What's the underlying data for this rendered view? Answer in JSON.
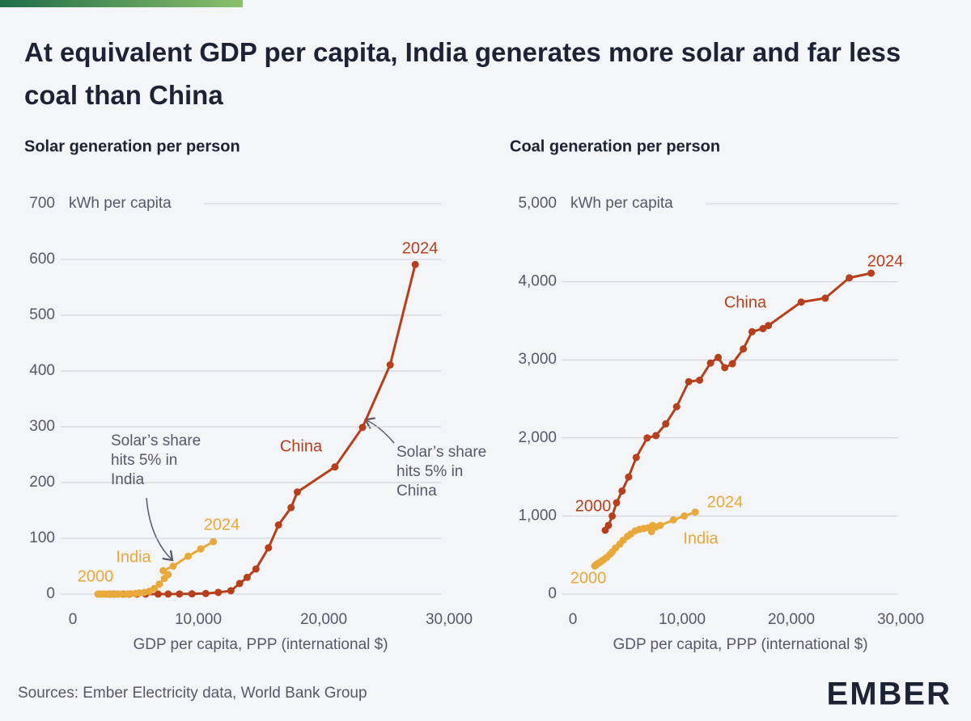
{
  "header": {
    "title": "At equivalent GDP per capita, India generates more solar and far less coal than China"
  },
  "footer": {
    "source": "Sources: Ember Electricity data, World Bank Group",
    "logo": "EMBER"
  },
  "chart_data": [
    {
      "type": "line",
      "title": "Solar generation per person",
      "ylabel": "kWh per capita",
      "xlabel": "GDP per capita, PPP (international $)",
      "xlim": [
        0,
        30000
      ],
      "xticks": [
        0,
        {
          "value": 10000,
          "label": "10,000"
        },
        {
          "value": 20000,
          "label": "20,000"
        },
        {
          "value": 30000,
          "label": "30,000"
        }
      ],
      "ylim": [
        0,
        700
      ],
      "yticks": [
        0,
        100,
        200,
        300,
        400,
        500,
        600,
        700
      ],
      "grid": true,
      "series": [
        {
          "name": "China",
          "color": "#b5401b",
          "end_label": "2024",
          "x": [
            2960,
            3260,
            3600,
            4000,
            4500,
            5100,
            5800,
            6800,
            7600,
            8500,
            9500,
            10600,
            11600,
            12600,
            13300,
            13900,
            14600,
            15600,
            16400,
            17400,
            17900,
            20900,
            23100,
            25300,
            27300
          ],
          "values": [
            0,
            0,
            0,
            0,
            0,
            0,
            0,
            0,
            0.1,
            0.2,
            0.5,
            1,
            3,
            6,
            19,
            30,
            45,
            83,
            124,
            155,
            183,
            228,
            299,
            411,
            591
          ]
        },
        {
          "name": "India",
          "color": "#e8a93a",
          "start_label": "2000",
          "end_label": "2024",
          "x": [
            2000,
            2100,
            2200,
            2400,
            2600,
            2800,
            3100,
            3400,
            3600,
            3900,
            4300,
            4600,
            5000,
            5300,
            5700,
            6100,
            6500,
            6900,
            7300,
            7600,
            7200,
            8000,
            9200,
            10200,
            11200
          ],
          "values": [
            0,
            0,
            0,
            0,
            0,
            0,
            0,
            0,
            0,
            0,
            0,
            0.5,
            1,
            2,
            3,
            5,
            10,
            18,
            28,
            35,
            42,
            50,
            68,
            81,
            94
          ]
        }
      ],
      "annotations": [
        {
          "lines": [
            "Solar’s share",
            "hits 5% in",
            "India"
          ]
        },
        {
          "lines": [
            "Solar’s share",
            "hits 5% in",
            "China"
          ]
        }
      ]
    },
    {
      "type": "line",
      "title": "Coal generation per person",
      "ylabel": "kWh per capita",
      "xlabel": "GDP per capita, PPP (international $)",
      "xlim": [
        0,
        30000
      ],
      "xticks": [
        0,
        {
          "value": 10000,
          "label": "10,000"
        },
        {
          "value": 20000,
          "label": "20,000"
        },
        {
          "value": 30000,
          "label": "30,000"
        }
      ],
      "ylim": [
        0,
        5000
      ],
      "yticks": [
        0,
        {
          "value": 1000,
          "label": "1,000"
        },
        {
          "value": 2000,
          "label": "2,000"
        },
        {
          "value": 3000,
          "label": "3,000"
        },
        {
          "value": 4000,
          "label": "4,000"
        },
        {
          "value": 5000,
          "label": "5,000"
        }
      ],
      "grid": true,
      "series": [
        {
          "name": "China",
          "color": "#b5401b",
          "start_label": "2000",
          "end_label": "2024",
          "x": [
            2960,
            3260,
            3600,
            4000,
            4500,
            5100,
            5800,
            6800,
            7600,
            8500,
            9500,
            10600,
            11600,
            12600,
            13300,
            13900,
            14600,
            15600,
            16400,
            17400,
            17900,
            20900,
            23100,
            25300,
            27300
          ],
          "values": [
            818,
            880,
            1000,
            1170,
            1320,
            1500,
            1750,
            2000,
            2030,
            2180,
            2400,
            2720,
            2740,
            2960,
            3030,
            2900,
            2950,
            3140,
            3360,
            3400,
            3440,
            3740,
            3790,
            4050,
            4110
          ]
        },
        {
          "name": "India",
          "color": "#e8a93a",
          "start_label": "2000",
          "end_label": "2024",
          "x": [
            2000,
            2100,
            2200,
            2400,
            2600,
            2800,
            3100,
            3400,
            3600,
            3900,
            4300,
            4600,
            5000,
            5300,
            5700,
            6100,
            6500,
            6900,
            7300,
            7600,
            7200,
            8000,
            9200,
            10200,
            11200
          ],
          "values": [
            360,
            370,
            385,
            400,
            420,
            440,
            470,
            510,
            540,
            590,
            640,
            690,
            740,
            770,
            810,
            830,
            840,
            850,
            880,
            860,
            800,
            880,
            950,
            1000,
            1050
          ]
        }
      ],
      "annotations": []
    }
  ]
}
